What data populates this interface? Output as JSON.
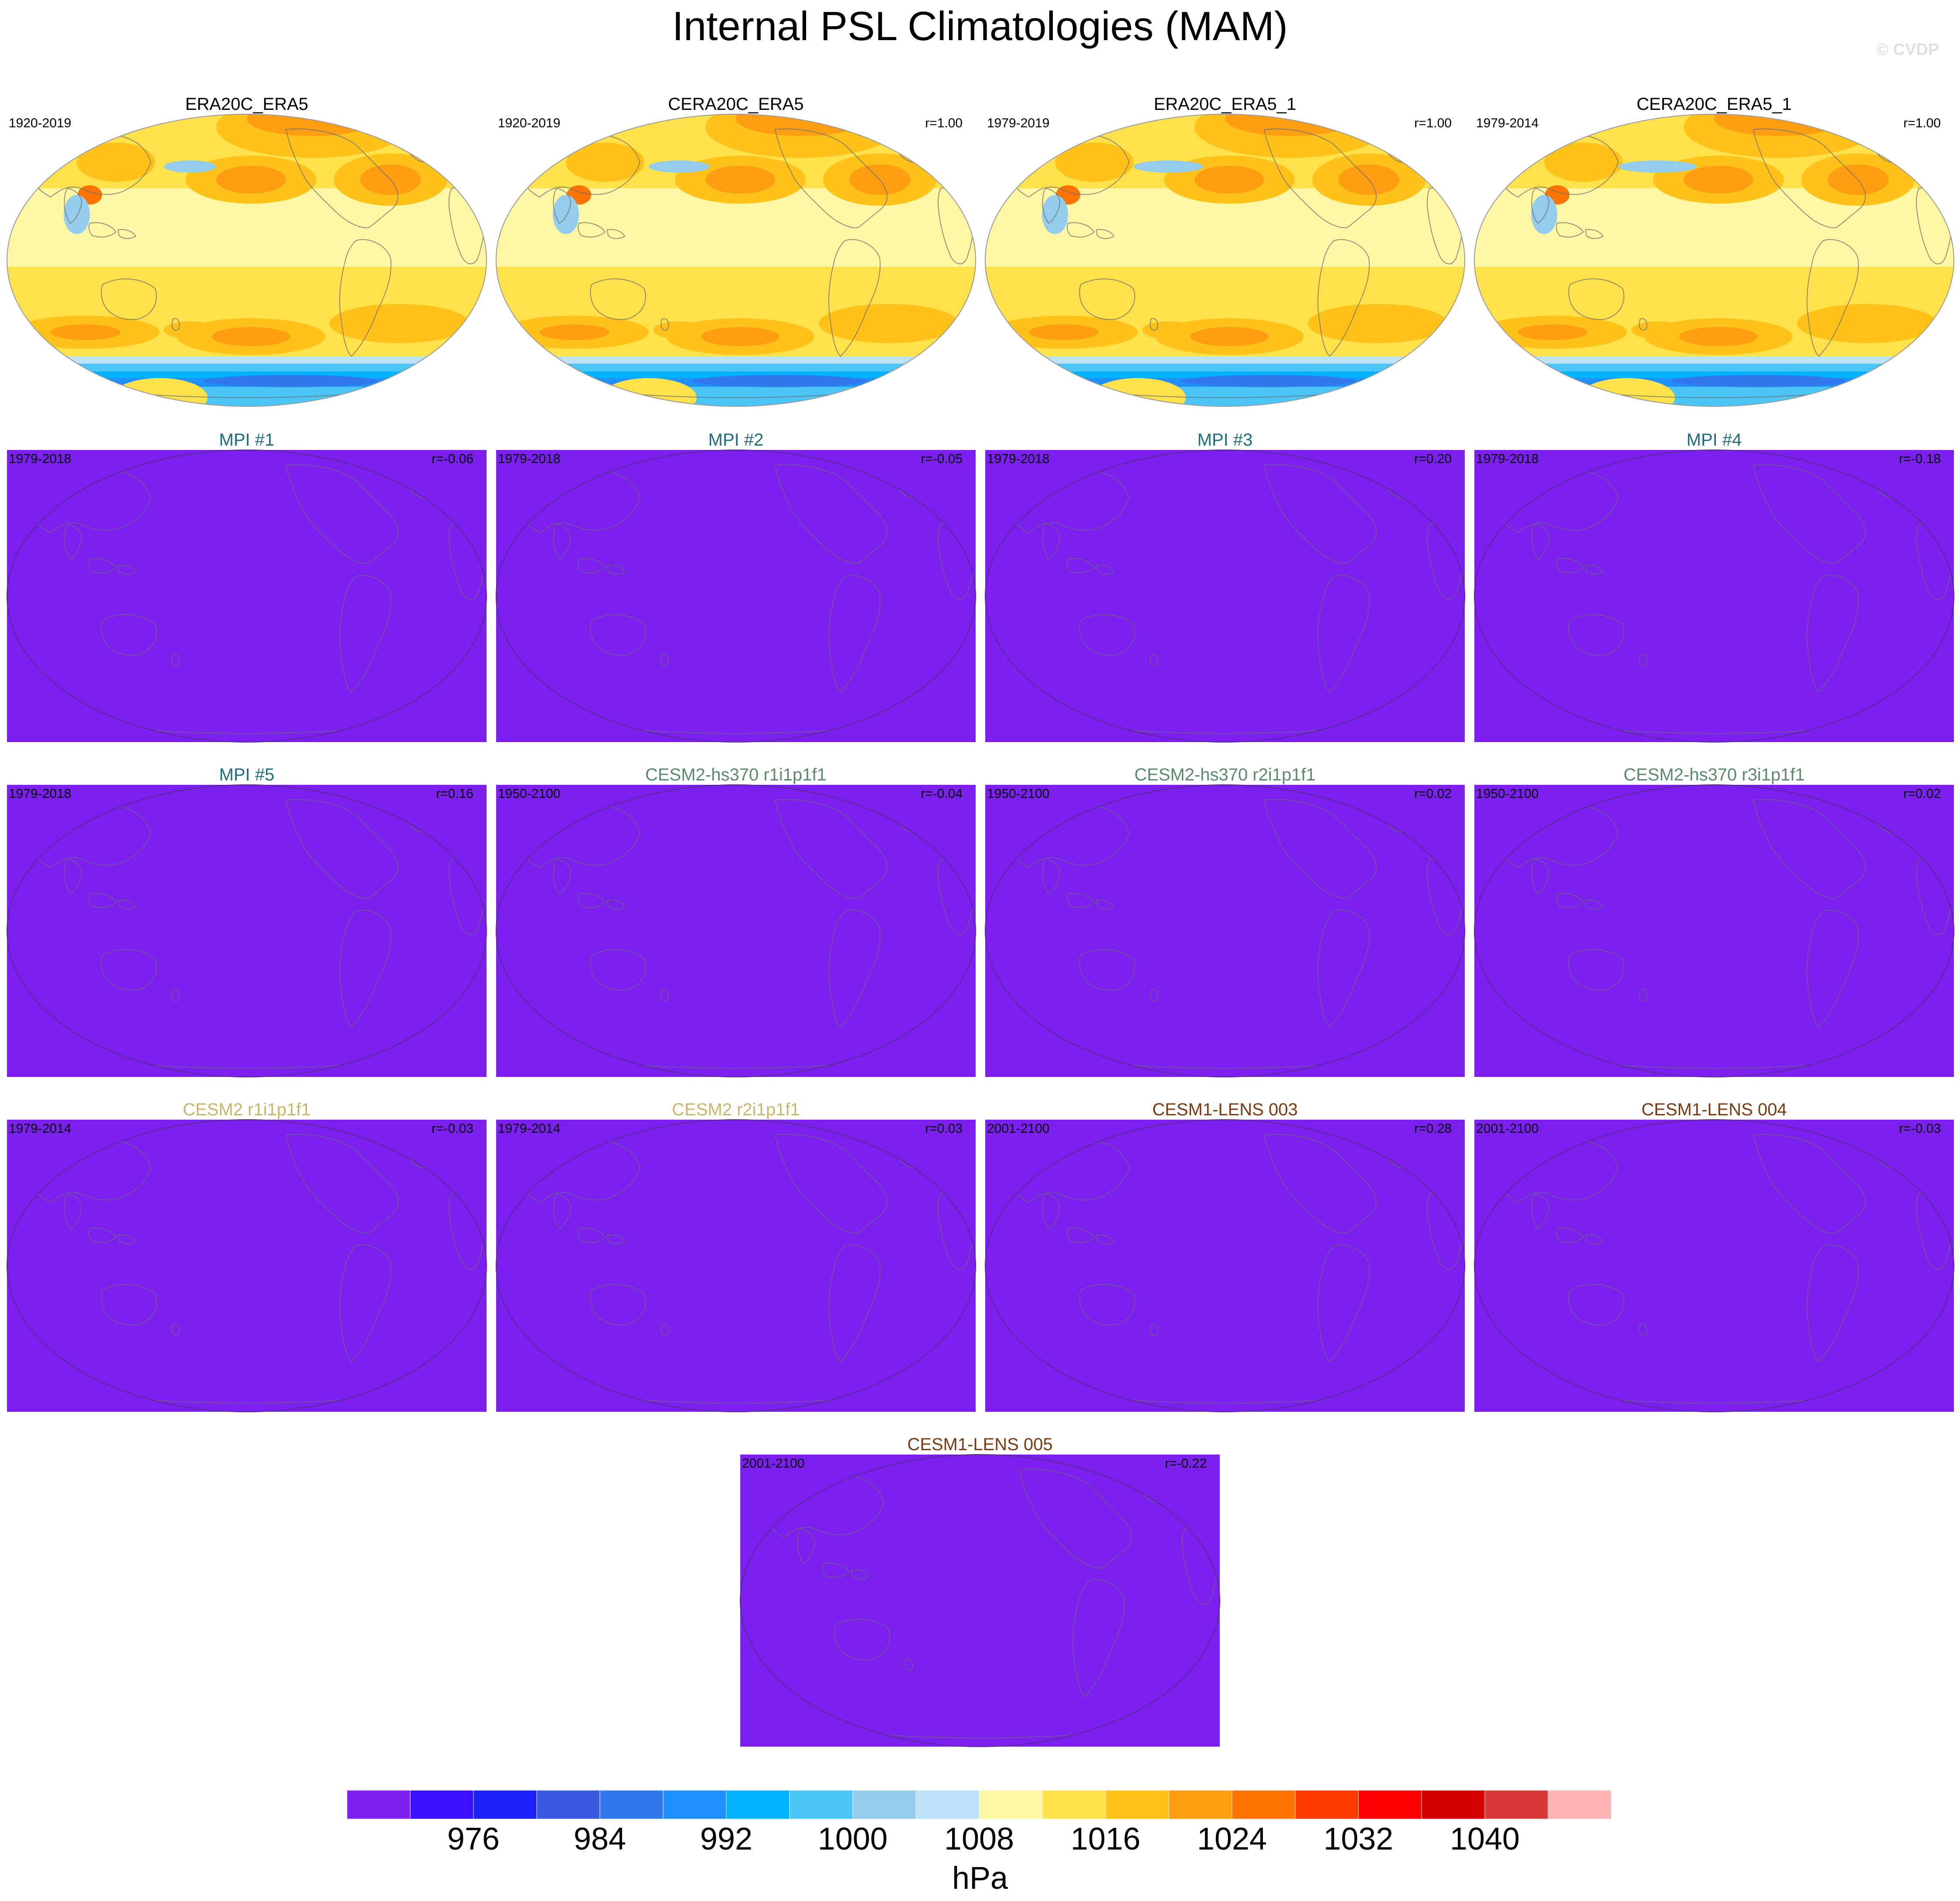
{
  "figure": {
    "title": "Internal PSL Climatologies (MAM)",
    "watermark": "© CVDP"
  },
  "chart_data": {
    "type": "heatmap",
    "variable": "PSL",
    "season": "MAM",
    "projection": "robinson",
    "panels": [
      {
        "title": "ERA20C_ERA5",
        "title_color": "#000000",
        "period": "1920-2019",
        "r": "",
        "field": "observed"
      },
      {
        "title": "CERA20C_ERA5",
        "title_color": "#000000",
        "period": "1920-2019",
        "r": "r=1.00",
        "field": "observed"
      },
      {
        "title": "ERA20C_ERA5_1",
        "title_color": "#000000",
        "period": "1979-2019",
        "r": "r=1.00",
        "field": "observed"
      },
      {
        "title": "CERA20C_ERA5_1",
        "title_color": "#000000",
        "period": "1979-2014",
        "r": "r=1.00",
        "field": "observed"
      },
      {
        "title": "MPI #1",
        "title_color": "#1f6b80",
        "period": "1979-2018",
        "r": "r=-0.06",
        "field": "uniform"
      },
      {
        "title": "MPI #2",
        "title_color": "#1f6b80",
        "period": "1979-2018",
        "r": "r=-0.05",
        "field": "uniform"
      },
      {
        "title": "MPI #3",
        "title_color": "#1f6b80",
        "period": "1979-2018",
        "r": "r=0.20",
        "field": "uniform"
      },
      {
        "title": "MPI #4",
        "title_color": "#1f6b80",
        "period": "1979-2018",
        "r": "r=-0.18",
        "field": "uniform"
      },
      {
        "title": "MPI #5",
        "title_color": "#1f6b80",
        "period": "1979-2018",
        "r": "r=0.16",
        "field": "uniform"
      },
      {
        "title": "CESM2-hs370 r1i1p1f1",
        "title_color": "#5a8a6a",
        "period": "1950-2100",
        "r": "r=-0.04",
        "field": "uniform"
      },
      {
        "title": "CESM2-hs370 r2i1p1f1",
        "title_color": "#5a8a6a",
        "period": "1950-2100",
        "r": "r=0.02",
        "field": "uniform"
      },
      {
        "title": "CESM2-hs370 r3i1p1f1",
        "title_color": "#5a8a6a",
        "period": "1950-2100",
        "r": "r=0.02",
        "field": "uniform"
      },
      {
        "title": "CESM2 r1i1p1f1",
        "title_color": "#c9b56a",
        "period": "1979-2014",
        "r": "r=-0.03",
        "field": "uniform"
      },
      {
        "title": "CESM2 r2i1p1f1",
        "title_color": "#c9b56a",
        "period": "1979-2014",
        "r": "r=0.03",
        "field": "uniform"
      },
      {
        "title": "CESM1-LENS 003",
        "title_color": "#7a3a10",
        "period": "2001-2100",
        "r": "r=0.28",
        "field": "uniform"
      },
      {
        "title": "CESM1-LENS 004",
        "title_color": "#7a3a10",
        "period": "2001-2100",
        "r": "r=-0.03",
        "field": "uniform"
      },
      {
        "title": "CESM1-LENS 005",
        "title_color": "#7a3a10",
        "period": "2001-2100",
        "r": "r=-0.22",
        "field": "uniform"
      }
    ],
    "uniform_fill_color": "#7b20ee",
    "colorbar": {
      "label": "hPa",
      "colors": [
        "#7b20ee",
        "#3a10ff",
        "#1a22f5",
        "#3a5be0",
        "#2f78ee",
        "#1e90ff",
        "#00b2ff",
        "#4cc6f6",
        "#94ccee",
        "#bde1f7",
        "#fff7a3",
        "#ffe14a",
        "#ffc21a",
        "#ff9e10",
        "#ff7300",
        "#ff3c00",
        "#ff0000",
        "#d40000",
        "#d93838",
        "#ffb3b3"
      ],
      "tick_labels": [
        "976",
        "984",
        "992",
        "1000",
        "1008",
        "1016",
        "1024",
        "1032",
        "1040"
      ]
    }
  }
}
